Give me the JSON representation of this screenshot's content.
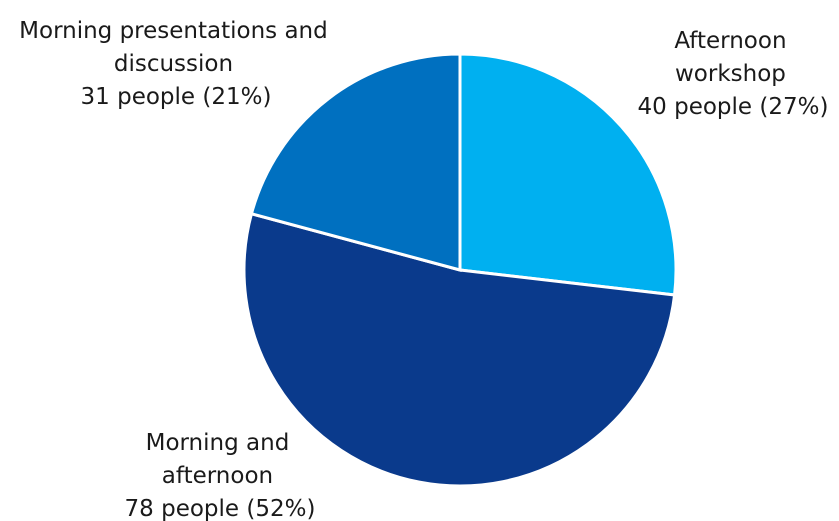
{
  "chart_data": {
    "type": "pie",
    "title": "",
    "slices": [
      {
        "category": [
          "Afternoon",
          "workshop"
        ],
        "value_label": "40 people (27%)",
        "count": 40,
        "percent": 27,
        "color": "#00b0f0"
      },
      {
        "category": [
          "Morning and",
          "afternoon"
        ],
        "value_label": "78 people (52%)",
        "count": 78,
        "percent": 52,
        "color": "#0a3a8c"
      },
      {
        "category": [
          "Morning presentations and",
          "discussion"
        ],
        "value_label": "31 people (21%)",
        "count": 31,
        "percent": 21,
        "color": "#0070c0"
      }
    ],
    "start_angle_deg": 0,
    "direction": "clockwise",
    "legend": "none"
  }
}
